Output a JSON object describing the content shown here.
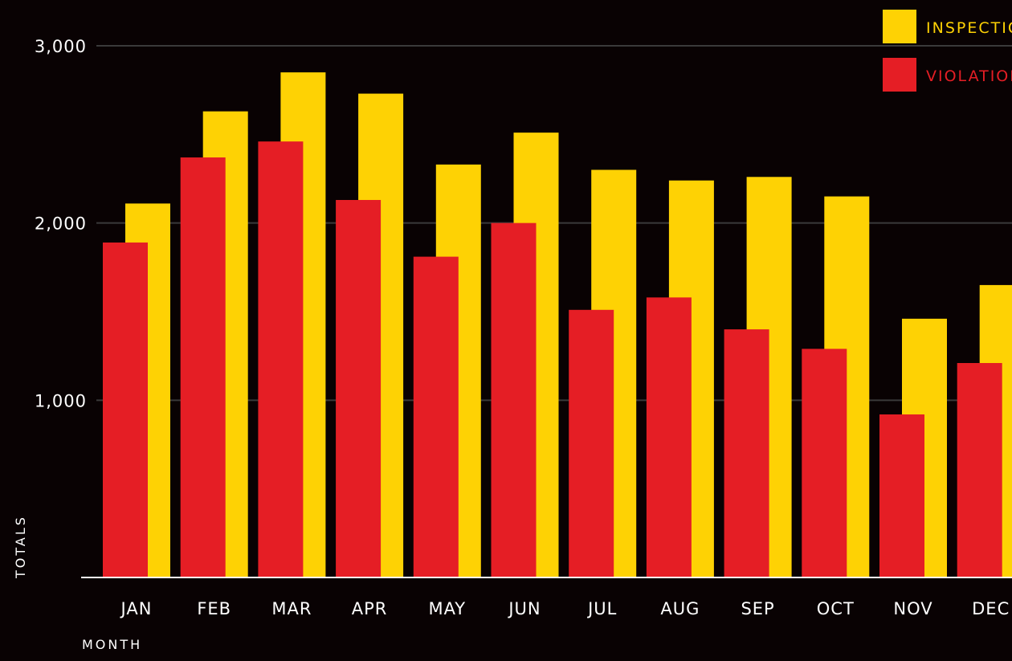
{
  "chart_data": {
    "type": "bar",
    "categories": [
      "JAN",
      "FEB",
      "MAR",
      "APR",
      "MAY",
      "JUN",
      "JUL",
      "AUG",
      "SEP",
      "OCT",
      "NOV",
      "DEC"
    ],
    "series": [
      {
        "name": "INSPECTIONS",
        "color": "#fed204",
        "values": [
          2110,
          2630,
          2850,
          2730,
          2330,
          2510,
          2300,
          2240,
          2260,
          2150,
          1460,
          1650
        ]
      },
      {
        "name": "VIOLATIONS",
        "color": "#e51e25",
        "values": [
          1890,
          2370,
          2460,
          2130,
          1810,
          2000,
          1510,
          1580,
          1400,
          1290,
          920,
          1210
        ]
      }
    ],
    "y_ticks": [
      {
        "value": 1000,
        "label": "1,000"
      },
      {
        "value": 2000,
        "label": "2,000"
      },
      {
        "value": 3000,
        "label": "3,000"
      }
    ],
    "ylim": [
      0,
      3000
    ],
    "xlabel": "MONTH",
    "ylabel": "TOTALS",
    "grid": true,
    "legend_position": "top-right"
  }
}
